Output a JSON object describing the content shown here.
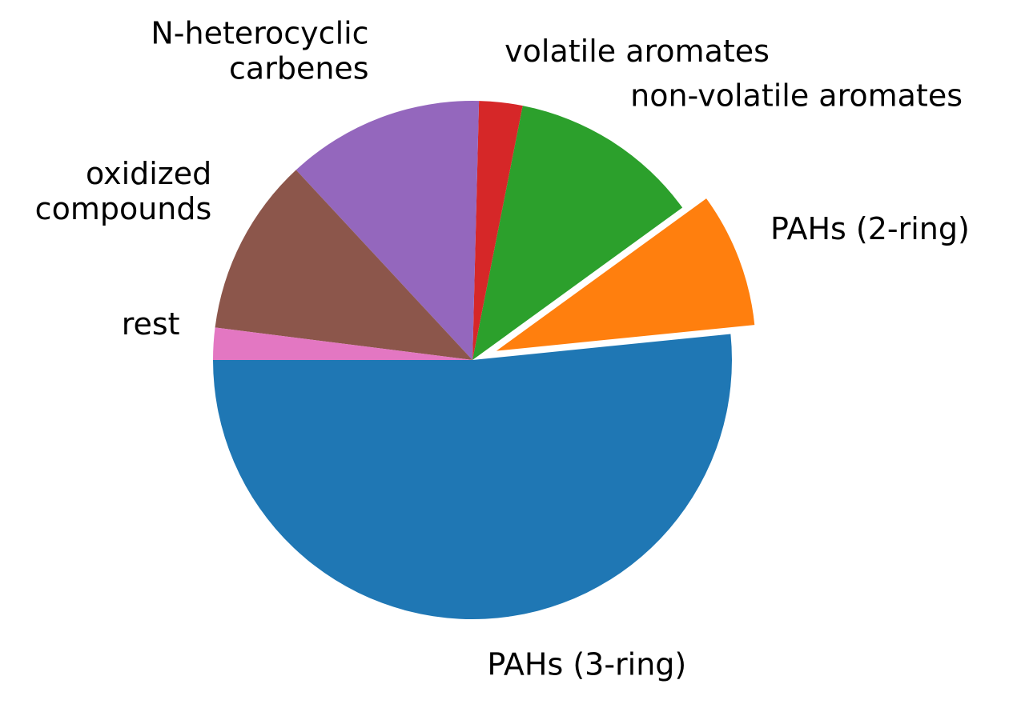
{
  "chart_data": {
    "type": "pie",
    "title": "",
    "start_angle_deg": 180,
    "direction": "counterclockwise",
    "slices": [
      {
        "label": "PAHs (3-ring)",
        "value": 51.6,
        "color": "#1f77b4",
        "exploded": false
      },
      {
        "label": "PAHs (2-ring)",
        "value": 8.4,
        "color": "#ff7f0e",
        "exploded": true
      },
      {
        "label": "non-volatile aromates",
        "value": 11.9,
        "color": "#2ca02c",
        "exploded": false
      },
      {
        "label": "volatile aromates",
        "value": 2.7,
        "color": "#d62728",
        "exploded": false
      },
      {
        "label": "N-heterocyclic carbenes",
        "value": 12.3,
        "color": "#9467bd",
        "exploded": false
      },
      {
        "label": "oxidized compounds",
        "value": 11.1,
        "color": "#8c564b",
        "exploded": false
      },
      {
        "label": "rest",
        "value": 2.0,
        "color": "#e377c2",
        "exploded": false
      }
    ]
  }
}
